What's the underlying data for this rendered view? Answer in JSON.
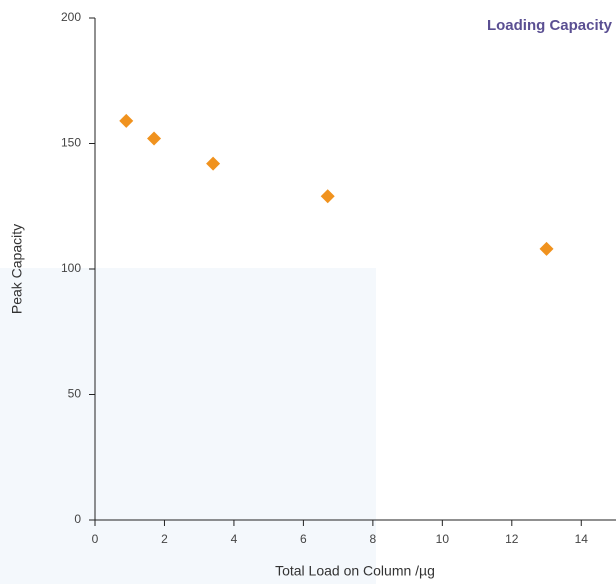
{
  "chart_data": {
    "type": "scatter",
    "title": "Loading Capacity",
    "x_label": "Total Load on Column /µg",
    "y_label": "Peak Capacity",
    "series": [
      {
        "color": "#f0921e",
        "x": [
          0.9,
          1.7,
          3.4,
          6.7,
          13.0
        ],
        "values": [
          159,
          152,
          142,
          129,
          108
        ]
      }
    ],
    "xlim": [
      0,
      15
    ],
    "xticks": [
      0,
      2,
      4,
      6,
      8,
      10,
      12,
      14
    ],
    "ylim": [
      0,
      200
    ],
    "yticks": [
      0,
      50,
      100,
      150,
      200
    ]
  }
}
